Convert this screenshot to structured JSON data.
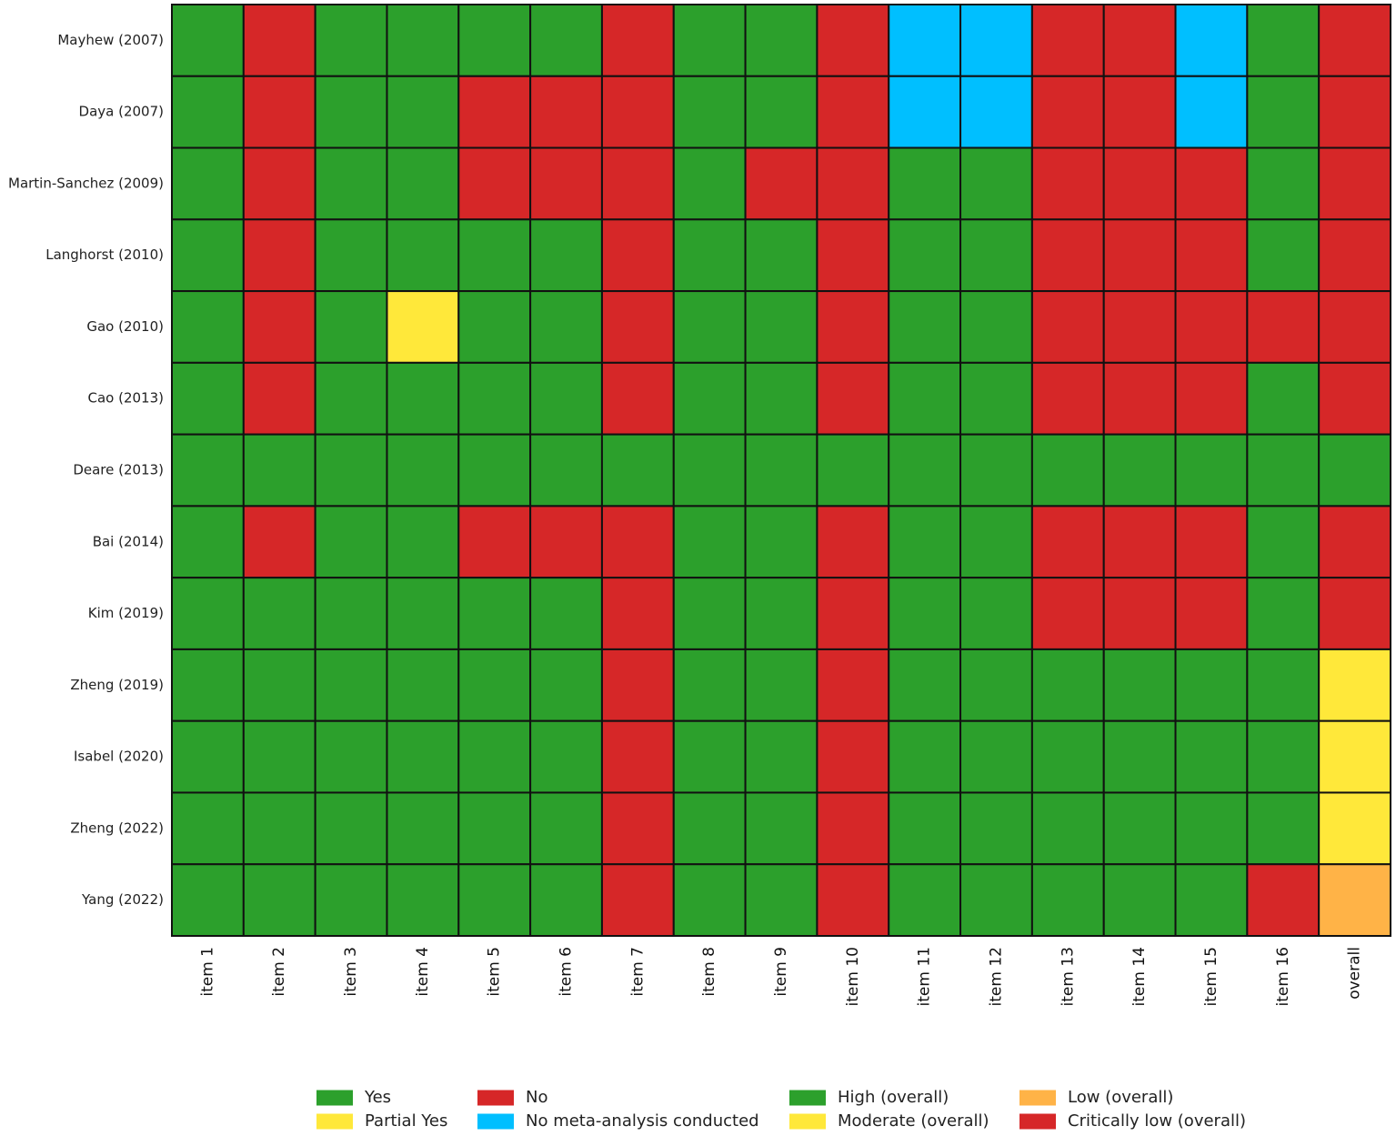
{
  "chart_data": {
    "type": "heatmap",
    "rows": [
      "Mayhew  (2007)",
      "Daya (2007)",
      "Martin-Sanchez (2009)",
      "Langhorst (2010)",
      "Gao (2010)",
      "Cao (2013)",
      "Deare (2013)",
      "Bai (2014)",
      "Kim (2019)",
      "Zheng (2019)",
      "Isabel (2020)",
      "Zheng (2022)",
      "Yang (2022)"
    ],
    "columns": [
      "item 1",
      "item 2",
      "item 3",
      "item 4",
      "item 5",
      "item 6",
      "item 7",
      "item 8",
      "item 9",
      "item 10",
      "item 11",
      "item 12",
      "item 13",
      "item 14",
      "item 15",
      "item 16",
      "overall"
    ],
    "values": [
      [
        "Y",
        "N",
        "Y",
        "Y",
        "Y",
        "Y",
        "N",
        "Y",
        "Y",
        "N",
        "NMA",
        "NMA",
        "N",
        "N",
        "NMA",
        "Y",
        "CL"
      ],
      [
        "Y",
        "N",
        "Y",
        "Y",
        "N",
        "N",
        "N",
        "Y",
        "Y",
        "N",
        "NMA",
        "NMA",
        "N",
        "N",
        "NMA",
        "Y",
        "CL"
      ],
      [
        "Y",
        "N",
        "Y",
        "Y",
        "N",
        "N",
        "N",
        "Y",
        "N",
        "N",
        "Y",
        "Y",
        "N",
        "N",
        "N",
        "Y",
        "CL"
      ],
      [
        "Y",
        "N",
        "Y",
        "Y",
        "Y",
        "Y",
        "N",
        "Y",
        "Y",
        "N",
        "Y",
        "Y",
        "N",
        "N",
        "N",
        "Y",
        "CL"
      ],
      [
        "Y",
        "N",
        "Y",
        "PY",
        "Y",
        "Y",
        "N",
        "Y",
        "Y",
        "N",
        "Y",
        "Y",
        "N",
        "N",
        "N",
        "N",
        "CL"
      ],
      [
        "Y",
        "N",
        "Y",
        "Y",
        "Y",
        "Y",
        "N",
        "Y",
        "Y",
        "N",
        "Y",
        "Y",
        "N",
        "N",
        "N",
        "Y",
        "CL"
      ],
      [
        "Y",
        "Y",
        "Y",
        "Y",
        "Y",
        "Y",
        "Y",
        "Y",
        "Y",
        "Y",
        "Y",
        "Y",
        "Y",
        "Y",
        "Y",
        "Y",
        "H"
      ],
      [
        "Y",
        "N",
        "Y",
        "Y",
        "N",
        "N",
        "N",
        "Y",
        "Y",
        "N",
        "Y",
        "Y",
        "N",
        "N",
        "N",
        "Y",
        "CL"
      ],
      [
        "Y",
        "Y",
        "Y",
        "Y",
        "Y",
        "Y",
        "N",
        "Y",
        "Y",
        "N",
        "Y",
        "Y",
        "N",
        "N",
        "N",
        "Y",
        "CL"
      ],
      [
        "Y",
        "Y",
        "Y",
        "Y",
        "Y",
        "Y",
        "N",
        "Y",
        "Y",
        "N",
        "Y",
        "Y",
        "Y",
        "Y",
        "Y",
        "Y",
        "M"
      ],
      [
        "Y",
        "Y",
        "Y",
        "Y",
        "Y",
        "Y",
        "N",
        "Y",
        "Y",
        "N",
        "Y",
        "Y",
        "Y",
        "Y",
        "Y",
        "Y",
        "M"
      ],
      [
        "Y",
        "Y",
        "Y",
        "Y",
        "Y",
        "Y",
        "N",
        "Y",
        "Y",
        "N",
        "Y",
        "Y",
        "Y",
        "Y",
        "Y",
        "Y",
        "M"
      ],
      [
        "Y",
        "Y",
        "Y",
        "Y",
        "Y",
        "Y",
        "N",
        "Y",
        "Y",
        "N",
        "Y",
        "Y",
        "Y",
        "Y",
        "Y",
        "N",
        "L"
      ]
    ],
    "categories": {
      "Y": {
        "label": "Yes",
        "color": "#2ca02c"
      },
      "PY": {
        "label": "Partial Yes",
        "color": "#ffe83a"
      },
      "N": {
        "label": "No",
        "color": "#d62728"
      },
      "NMA": {
        "label": "No meta-analysis conducted",
        "color": "#00bfff"
      },
      "H": {
        "label": "High (overall)",
        "color": "#2ca02c"
      },
      "M": {
        "label": "Moderate (overall)",
        "color": "#ffe83a"
      },
      "L": {
        "label": "Low (overall)",
        "color": "#ffb347"
      },
      "CL": {
        "label": "Critically low (overall)",
        "color": "#d62728"
      }
    },
    "legend": {
      "placement": "bottom",
      "entries": [
        "Y",
        "PY",
        "N",
        "NMA",
        "H",
        "M",
        "L",
        "CL"
      ]
    },
    "grid": true
  }
}
